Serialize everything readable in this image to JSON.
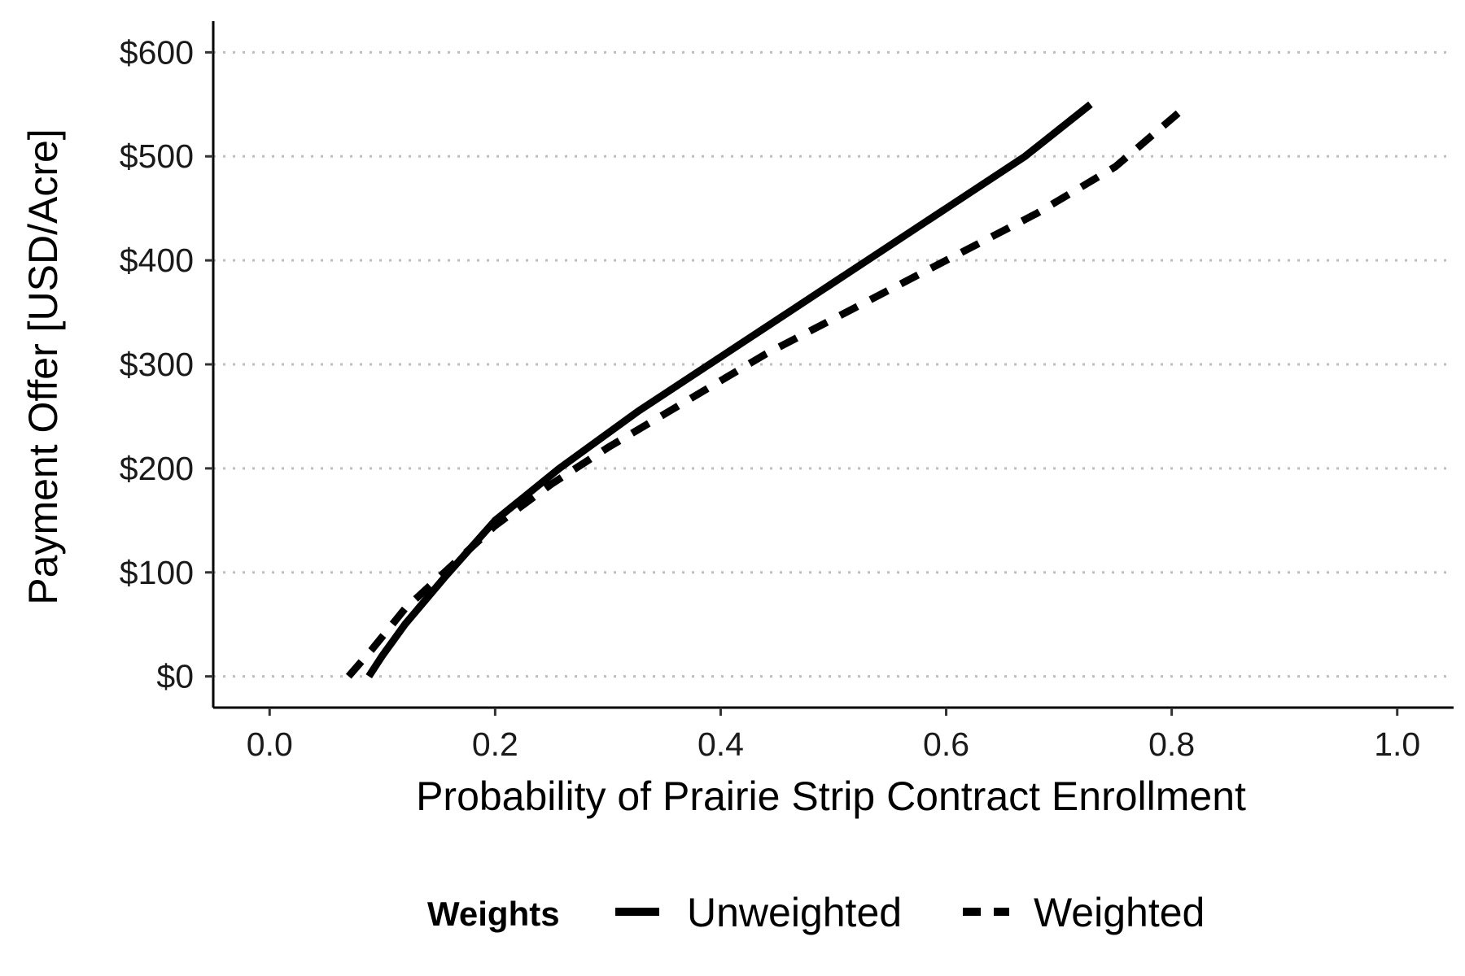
{
  "chart_data": {
    "type": "line",
    "title": "",
    "xlabel": "Probability of Prairie Strip Contract Enrollment",
    "ylabel": "Payment Offer [USD/Acre]",
    "xlim": [
      -0.05,
      1.05
    ],
    "ylim": [
      -30,
      630
    ],
    "x_ticks": [
      0.0,
      0.2,
      0.4,
      0.6,
      0.8,
      1.0
    ],
    "x_tick_labels": [
      "0.0",
      "0.2",
      "0.4",
      "0.6",
      "0.8",
      "1.0"
    ],
    "y_ticks": [
      0,
      100,
      200,
      300,
      400,
      500,
      600
    ],
    "y_tick_labels": [
      "$0",
      "$100",
      "$200",
      "$300",
      "$400",
      "$500",
      "$600"
    ],
    "grid": "horizontal dotted",
    "legend": {
      "title": "Weights",
      "position": "bottom"
    },
    "series": [
      {
        "name": "Unweighted",
        "style": "solid",
        "color": "#000000",
        "x": [
          0.088,
          0.1,
          0.12,
          0.155,
          0.2,
          0.257,
          0.327,
          0.39,
          0.46,
          0.53,
          0.6,
          0.67,
          0.728
        ],
        "y": [
          0,
          20,
          50,
          95,
          150,
          200,
          255,
          300,
          350,
          400,
          450,
          500,
          550
        ]
      },
      {
        "name": "Weighted",
        "style": "dashed",
        "color": "#000000",
        "x": [
          0.07,
          0.09,
          0.12,
          0.16,
          0.2,
          0.25,
          0.3,
          0.37,
          0.44,
          0.52,
          0.6,
          0.68,
          0.75,
          0.815
        ],
        "y": [
          0,
          25,
          65,
          105,
          145,
          185,
          220,
          265,
          310,
          355,
          400,
          445,
          490,
          550
        ]
      }
    ]
  }
}
